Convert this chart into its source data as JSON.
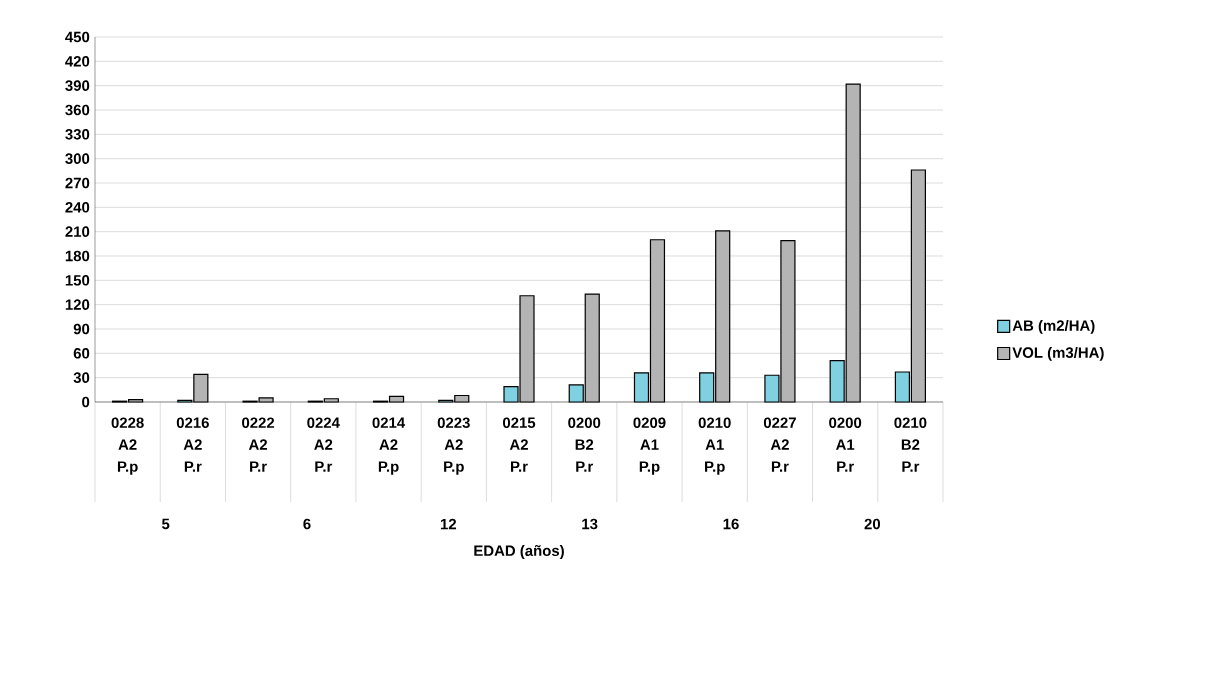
{
  "chart_data": {
    "type": "bar",
    "xlabel": "EDAD (años)",
    "categories": [
      "0228 A2 P.p",
      "0216 A2 P.r",
      "0222 A2 P.r",
      "0224 A2 P.r",
      "0214 A2 P.p",
      "0223 A2 P.p",
      "0215 A2 P.r",
      "0200 B2 P.r",
      "0209 A1 P.p",
      "0210 A1 P.p",
      "0227 A2 P.r",
      "0200 A1 P.r",
      "0210 B2 P.r"
    ],
    "series": [
      {
        "name": "AB (m2/HA)",
        "color": "#7fd0e0",
        "values": [
          1,
          2,
          1,
          1,
          1,
          2,
          19,
          21,
          36,
          36,
          33,
          51,
          37
        ]
      },
      {
        "name": "VOL (m3/HA)",
        "color": "#b4b4b4",
        "values": [
          3,
          34,
          5,
          4,
          7,
          8,
          131,
          133,
          200,
          211,
          199,
          392,
          286
        ]
      }
    ],
    "annotations": [
      "5",
      "6",
      "12",
      "13",
      "16",
      "20"
    ],
    "ylim": [
      0,
      450
    ],
    "yticks": [
      0,
      30,
      60,
      90,
      120,
      150,
      180,
      210,
      240,
      270,
      300,
      330,
      360,
      390,
      420,
      450
    ],
    "grid": "y",
    "legend": "right"
  }
}
